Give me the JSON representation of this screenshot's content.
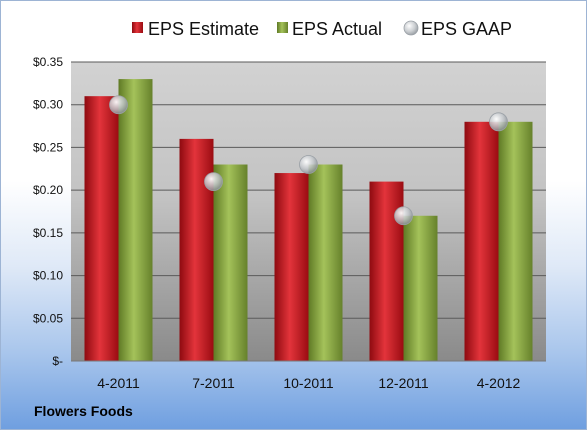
{
  "company": "Flowers Foods",
  "colors": {
    "estimate": "#c3121b",
    "actual": "#7f9d3a",
    "gaap": "#c4c8cc"
  },
  "chart_data": {
    "type": "bar",
    "categories": [
      "4-2011",
      "7-2011",
      "10-2011",
      "12-2011",
      "4-2012"
    ],
    "series": [
      {
        "name": "EPS Estimate",
        "values": [
          0.31,
          0.26,
          0.22,
          0.21,
          0.28
        ]
      },
      {
        "name": "EPS Actual",
        "values": [
          0.33,
          0.23,
          0.23,
          0.17,
          0.28
        ]
      },
      {
        "name": "EPS GAAP",
        "values": [
          0.3,
          0.21,
          0.23,
          0.17,
          0.28
        ],
        "marker": "circle"
      }
    ],
    "ylim": [
      0,
      0.35
    ],
    "yticks": [
      0,
      0.05,
      0.1,
      0.15,
      0.2,
      0.25,
      0.3,
      0.35
    ],
    "ytick_labels": [
      "$-",
      "$0.05",
      "$0.10",
      "$0.15",
      "$0.20",
      "$0.25",
      "$0.30",
      "$0.35"
    ],
    "grid": true,
    "legend_position": "top"
  }
}
